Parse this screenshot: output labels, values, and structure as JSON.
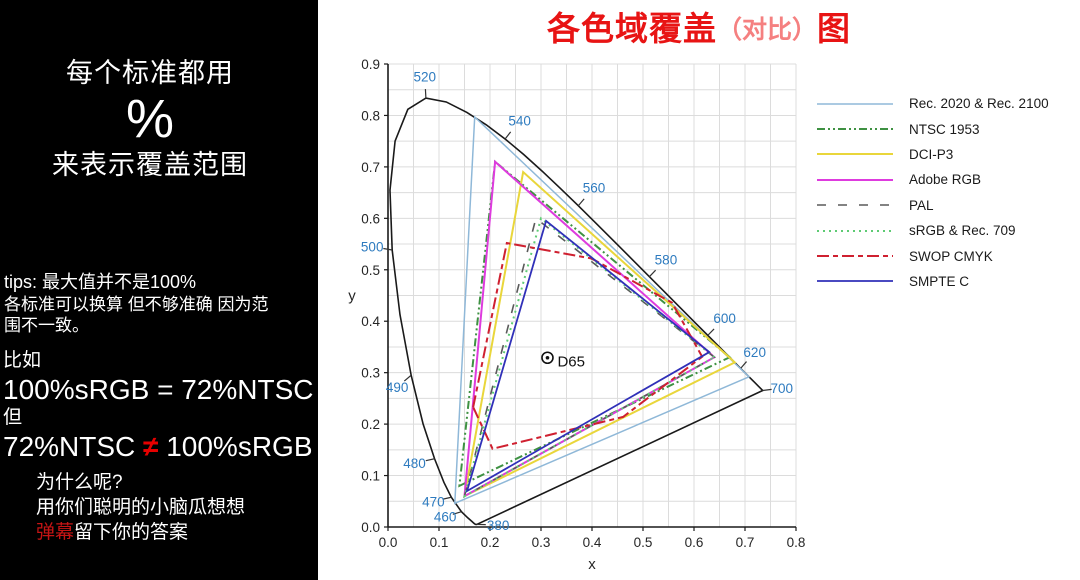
{
  "left_panel": {
    "headline": {
      "line1": "每个标准都用",
      "percent": "%",
      "line2": "来表示覆盖范围"
    },
    "tips": {
      "line1": "tips: 最大值并不是100%",
      "line2": "各标准可以换算 但不够准确 因为范",
      "line3": "围不一致。"
    },
    "example": {
      "intro": "比如",
      "eq1": "100%sRGB = 72%NTSC",
      "but": "但",
      "eq2_left": "72%NTSC ",
      "eq2_neq": "≠",
      "eq2_right": " 100%sRGB"
    },
    "question": {
      "line1": "为什么呢?",
      "line2": "用你们聪明的小脑瓜想想",
      "line3_red": "弹幕",
      "line3_rest": "留下你的答案"
    }
  },
  "title": {
    "main": "各色域覆盖",
    "paren": "（对比）",
    "suffix": "图"
  },
  "colors": {
    "title_main": "#e81414",
    "title_paren": "#f58080",
    "accent_red": "#e60000",
    "danmu_red": "#c41414",
    "wavelength_blue": "#2e7bbf",
    "grid": "#dcdcdc",
    "axis": "#1a1a1a"
  },
  "chart_data": {
    "type": "line",
    "title": "各色域覆盖（对比）图",
    "xlabel": "x",
    "ylabel": "y",
    "xlim": [
      0,
      0.8
    ],
    "ylim": [
      0,
      0.9
    ],
    "xticks": [
      "0.0",
      "0.1",
      "0.2",
      "0.3",
      "0.4",
      "0.5",
      "0.6",
      "0.7",
      "0.8"
    ],
    "yticks": [
      "0.0",
      "0.1",
      "0.2",
      "0.3",
      "0.4",
      "0.5",
      "0.6",
      "0.7",
      "0.8",
      "0.9"
    ],
    "grid_step": 0.05,
    "legend_position": "right",
    "whitepoint": {
      "label": "D65",
      "x": 0.3127,
      "y": 0.329
    },
    "spectral_locus": {
      "points": [
        [
          0.1741,
          0.005
        ],
        [
          0.1714,
          0.0051
        ],
        [
          0.1689,
          0.0069
        ],
        [
          0.1644,
          0.0109
        ],
        [
          0.1566,
          0.0177
        ],
        [
          0.144,
          0.0297
        ],
        [
          0.1241,
          0.0578
        ],
        [
          0.1096,
          0.0868
        ],
        [
          0.0913,
          0.1327
        ],
        [
          0.0687,
          0.2007
        ],
        [
          0.0454,
          0.295
        ],
        [
          0.0235,
          0.4127
        ],
        [
          0.0082,
          0.5384
        ],
        [
          0.0039,
          0.6548
        ],
        [
          0.0139,
          0.7502
        ],
        [
          0.0389,
          0.812
        ],
        [
          0.0743,
          0.8338
        ],
        [
          0.1142,
          0.8262
        ],
        [
          0.1547,
          0.8059
        ],
        [
          0.1929,
          0.7816
        ],
        [
          0.2296,
          0.7543
        ],
        [
          0.2658,
          0.7243
        ],
        [
          0.3016,
          0.6923
        ],
        [
          0.3373,
          0.6589
        ],
        [
          0.3731,
          0.6245
        ],
        [
          0.4087,
          0.5896
        ],
        [
          0.4441,
          0.5547
        ],
        [
          0.4788,
          0.5202
        ],
        [
          0.5125,
          0.4866
        ],
        [
          0.5448,
          0.4544
        ],
        [
          0.5752,
          0.4242
        ],
        [
          0.6029,
          0.3965
        ],
        [
          0.627,
          0.3725
        ],
        [
          0.6482,
          0.3514
        ],
        [
          0.6658,
          0.334
        ],
        [
          0.6801,
          0.3197
        ],
        [
          0.6915,
          0.3083
        ],
        [
          0.7079,
          0.292
        ],
        [
          0.719,
          0.2809
        ],
        [
          0.726,
          0.274
        ],
        [
          0.7334,
          0.2666
        ],
        [
          0.7347,
          0.2653
        ]
      ]
    },
    "wavelength_labels": [
      {
        "label": "520",
        "x": 0.0743,
        "y": 0.8338,
        "lx": 0.072,
        "ly": 0.876
      },
      {
        "label": "540",
        "x": 0.2296,
        "y": 0.7543,
        "lx": 0.258,
        "ly": 0.79
      },
      {
        "label": "560",
        "x": 0.3731,
        "y": 0.6245,
        "lx": 0.404,
        "ly": 0.66
      },
      {
        "label": "580",
        "x": 0.5125,
        "y": 0.4866,
        "lx": 0.545,
        "ly": 0.52
      },
      {
        "label": "600",
        "x": 0.627,
        "y": 0.3725,
        "lx": 0.66,
        "ly": 0.406
      },
      {
        "label": "620",
        "x": 0.6915,
        "y": 0.3083,
        "lx": 0.719,
        "ly": 0.34
      },
      {
        "label": "700",
        "x": 0.7347,
        "y": 0.2653,
        "lx": 0.772,
        "ly": 0.27
      },
      {
        "label": "500",
        "x": 0.0082,
        "y": 0.5384,
        "lx": -0.031,
        "ly": 0.545
      },
      {
        "label": "490",
        "x": 0.0454,
        "y": 0.295,
        "lx": 0.018,
        "ly": 0.272
      },
      {
        "label": "480",
        "x": 0.0913,
        "y": 0.1327,
        "lx": 0.052,
        "ly": 0.124
      },
      {
        "label": "470",
        "x": 0.1241,
        "y": 0.0578,
        "lx": 0.089,
        "ly": 0.05
      },
      {
        "label": "460",
        "x": 0.144,
        "y": 0.0297,
        "lx": 0.112,
        "ly": 0.02
      },
      {
        "label": "380",
        "x": 0.1741,
        "y": 0.005,
        "lx": 0.216,
        "ly": 0.004
      }
    ],
    "series": [
      {
        "name": "Rec. 2020 & Rec. 2100",
        "color": "#8fb8d8",
        "dash": "",
        "width": 1.5,
        "points": [
          [
            0.708,
            0.292
          ],
          [
            0.17,
            0.797
          ],
          [
            0.131,
            0.046
          ]
        ]
      },
      {
        "name": "NTSC 1953",
        "color": "#3e9142",
        "dash": "8 3 2 3 2 3",
        "width": 2,
        "points": [
          [
            0.67,
            0.33
          ],
          [
            0.21,
            0.71
          ],
          [
            0.14,
            0.08
          ]
        ]
      },
      {
        "name": "DCI-P3",
        "color": "#e9d63b",
        "dash": "",
        "width": 2,
        "points": [
          [
            0.68,
            0.32
          ],
          [
            0.265,
            0.69
          ],
          [
            0.15,
            0.06
          ]
        ]
      },
      {
        "name": "Adobe RGB",
        "color": "#de3bde",
        "dash": "",
        "width": 2,
        "points": [
          [
            0.64,
            0.33
          ],
          [
            0.21,
            0.71
          ],
          [
            0.15,
            0.06
          ]
        ]
      },
      {
        "name": "PAL",
        "color": "#5a5a5a",
        "dash": "9 12",
        "width": 1.6,
        "points": [
          [
            0.64,
            0.33
          ],
          [
            0.29,
            0.6
          ],
          [
            0.15,
            0.06
          ]
        ]
      },
      {
        "name": "sRGB & Rec. 709",
        "color": "#5ecb74",
        "dash": "2 4",
        "width": 2,
        "points": [
          [
            0.64,
            0.33
          ],
          [
            0.3,
            0.6
          ],
          [
            0.15,
            0.06
          ]
        ]
      },
      {
        "name": "SWOP CMYK",
        "color": "#cf2030",
        "dash": "12 4 5 4",
        "width": 2,
        "points": [
          [
            0.167,
            0.233
          ],
          [
            0.233,
            0.552
          ],
          [
            0.399,
            0.522
          ],
          [
            0.557,
            0.436
          ],
          [
            0.616,
            0.331
          ],
          [
            0.461,
            0.214
          ],
          [
            0.205,
            0.152
          ]
        ]
      },
      {
        "name": "SMPTE C",
        "color": "#3030b8",
        "dash": "",
        "width": 1.8,
        "points": [
          [
            0.63,
            0.34
          ],
          [
            0.31,
            0.595
          ],
          [
            0.155,
            0.07
          ]
        ]
      }
    ]
  }
}
